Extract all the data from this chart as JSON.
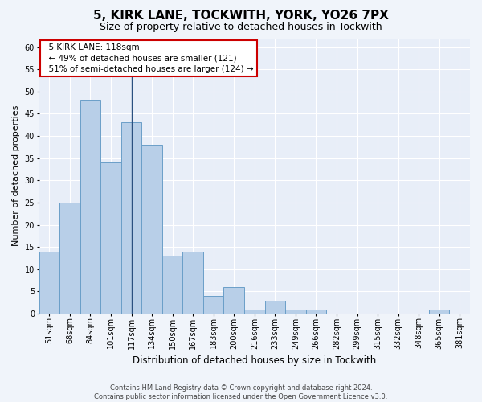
{
  "title1": "5, KIRK LANE, TOCKWITH, YORK, YO26 7PX",
  "title2": "Size of property relative to detached houses in Tockwith",
  "xlabel": "Distribution of detached houses by size in Tockwith",
  "ylabel": "Number of detached properties",
  "footer1": "Contains HM Land Registry data © Crown copyright and database right 2024.",
  "footer2": "Contains public sector information licensed under the Open Government Licence v3.0.",
  "annotation_line1": "  5 KIRK LANE: 118sqm",
  "annotation_line2": "  ← 49% of detached houses are smaller (121)",
  "annotation_line3": "  51% of semi-detached houses are larger (124) →",
  "bar_color": "#b8cfe8",
  "bar_edge_color": "#6a9fc8",
  "vline_color": "#2a5080",
  "categories": [
    "51sqm",
    "68sqm",
    "84sqm",
    "101sqm",
    "117sqm",
    "134sqm",
    "150sqm",
    "167sqm",
    "183sqm",
    "200sqm",
    "216sqm",
    "233sqm",
    "249sqm",
    "266sqm",
    "282sqm",
    "299sqm",
    "315sqm",
    "332sqm",
    "348sqm",
    "365sqm",
    "381sqm"
  ],
  "values": [
    14,
    25,
    48,
    34,
    43,
    38,
    13,
    14,
    4,
    6,
    1,
    3,
    1,
    1,
    0,
    0,
    0,
    0,
    0,
    1,
    0
  ],
  "vline_x_index": 4,
  "ylim": [
    0,
    62
  ],
  "yticks": [
    0,
    5,
    10,
    15,
    20,
    25,
    30,
    35,
    40,
    45,
    50,
    55,
    60
  ],
  "background_color": "#f0f4fa",
  "plot_bg_color": "#e8eef8",
  "grid_color": "#ffffff",
  "annotation_box_facecolor": "#ffffff",
  "annotation_box_edgecolor": "#cc0000",
  "title1_fontsize": 11,
  "title2_fontsize": 9,
  "ylabel_fontsize": 8,
  "xlabel_fontsize": 8.5,
  "tick_fontsize": 7,
  "annotation_fontsize": 7.5,
  "footer_fontsize": 6
}
